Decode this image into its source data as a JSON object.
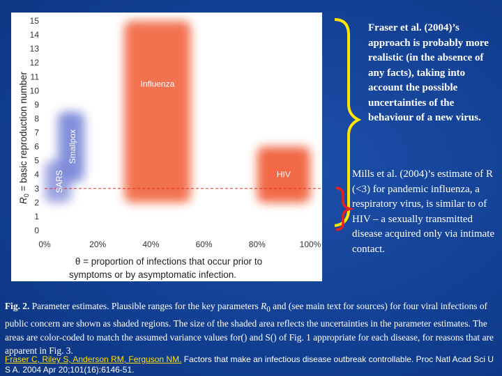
{
  "chart_data": {
    "type": "area",
    "xlabel_line1": "θ = proportion of infections that occur prior to",
    "xlabel_line2": "symptoms or by asymptomatic infection.",
    "ylabel_main": " = basic reproduction number",
    "ylabel_sym": "R",
    "ylabel_sub": "0",
    "x_ticks": [
      "0%",
      "20%",
      "40%",
      "60%",
      "80%",
      "100%"
    ],
    "y_ticks": [
      "0",
      "1",
      "2",
      "3",
      "4",
      "5",
      "6",
      "7",
      "8",
      "9",
      "10",
      "11",
      "12",
      "13",
      "14",
      "15"
    ],
    "xlim": [
      0,
      100
    ],
    "ylim": [
      0,
      15
    ],
    "regions": [
      {
        "name": "Smallpox",
        "x": [
          5,
          15
        ],
        "y": [
          3.5,
          8.5
        ],
        "color": "#5a6ccf"
      },
      {
        "name": "Influenza",
        "x": [
          30,
          55
        ],
        "y": [
          2,
          15
        ],
        "color": "#f05a30"
      },
      {
        "name": "SARS",
        "x": [
          0,
          10
        ],
        "y": [
          2,
          5
        ],
        "color": "#7a86d8"
      },
      {
        "name": "HIV",
        "x": [
          80,
          100
        ],
        "y": [
          2,
          6
        ],
        "color": "#ef5028"
      }
    ],
    "reference_line_y": 3
  },
  "notes": {
    "fraser": "Fraser et al. (2004)’s approach is probably more realistic (in the absence of any facts), taking into account the possible uncertainties of the behaviour of a new virus.",
    "mills": "Mills et al. (2004)’s estimate of R (<3) for pandemic influenza, a respiratory virus, is similar to of HIV – a sexually transmitted disease acquired only via intimate contact."
  },
  "caption": {
    "label": "Fig. 2.",
    "text1": " Parameter estimates. Plausible ranges for the key parameters ",
    "r0": "R",
    "r0_sub": "0",
    "text2": " and (see main text for sources) for four viral infections of public concern are shown as shaded regions. The size of the shaded area reflects the uncertainties in the parameter estimates. The areas are color-coded to match the assumed variance values for() and S() of Fig. 1 appropriate for each disease, for reasons that are apparent in Fig. 3."
  },
  "reference": {
    "authors": "Fraser C, Riley S, Anderson RM, Ferguson NM.",
    "rest": " Factors that make an infectious disease outbreak controllable. Proc Natl Acad Sci U S A. 2004 Apr 20;101(16):6146-51."
  },
  "colors": {
    "background": "#123f92",
    "brace_yellow": "#ffe600",
    "brace_red": "#e8201a",
    "dashed_line": "#e03020"
  }
}
